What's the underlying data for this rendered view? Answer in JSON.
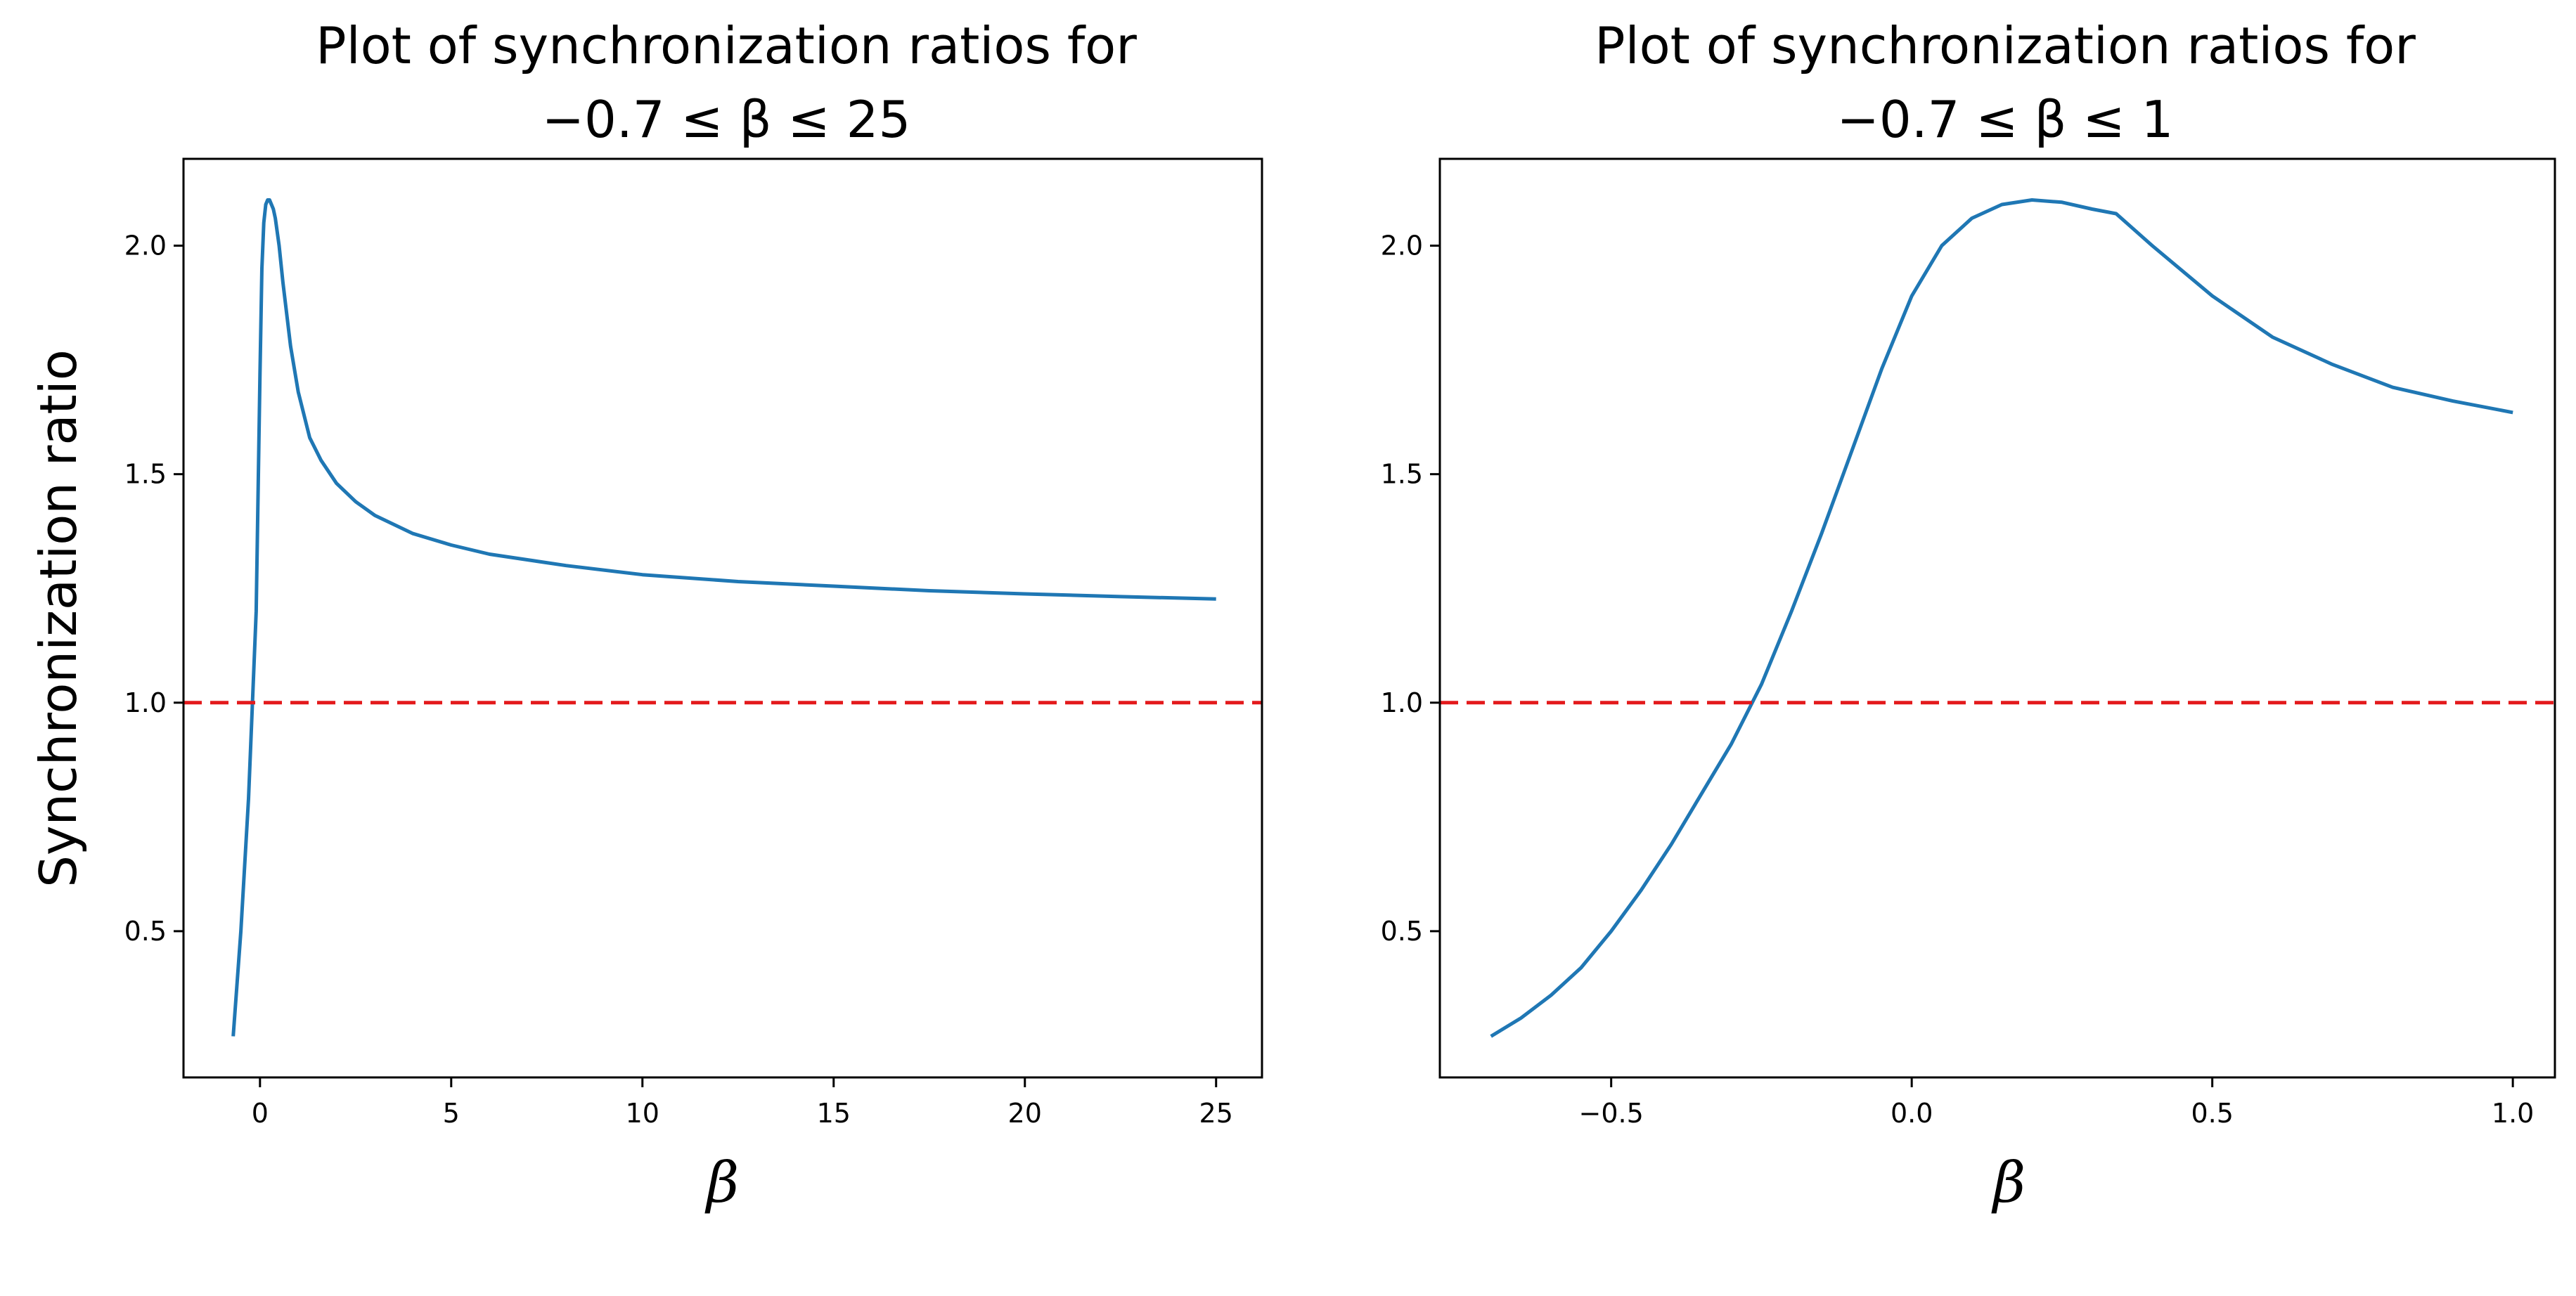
{
  "chart_data": [
    {
      "type": "line",
      "title_line1": "Plot of synchronization ratios for",
      "title_line2": "−0.7 ≤ β ≤ 25",
      "xlabel": "β",
      "ylabel": "Synchronization ratio",
      "xlim": [
        -2.0,
        26.2
      ],
      "ylim": [
        0.18,
        2.19
      ],
      "xticks": [
        0,
        5,
        10,
        15,
        20,
        25
      ],
      "xtick_labels": [
        "0",
        "5",
        "10",
        "15",
        "20",
        "25"
      ],
      "yticks": [
        0.5,
        1.0,
        1.5,
        2.0
      ],
      "ytick_labels": [
        "0.5",
        "1.0",
        "1.5",
        "2.0"
      ],
      "grid": false,
      "series": [
        {
          "color": "#1f77b4",
          "x": [
            -0.7,
            -0.5,
            -0.3,
            -0.1,
            0.0,
            0.05,
            0.1,
            0.15,
            0.2,
            0.25,
            0.3,
            0.35,
            0.4,
            0.5,
            0.6,
            0.8,
            1.0,
            1.3,
            1.6,
            2.0,
            2.5,
            3.0,
            4.0,
            5.0,
            6.0,
            8.0,
            10.0,
            12.5,
            15.0,
            17.5,
            20.0,
            22.5,
            25.0
          ],
          "y": [
            0.27,
            0.5,
            0.79,
            1.2,
            1.72,
            1.95,
            2.05,
            2.09,
            2.1,
            2.1,
            2.09,
            2.08,
            2.06,
            2.0,
            1.92,
            1.78,
            1.68,
            1.58,
            1.53,
            1.48,
            1.44,
            1.41,
            1.37,
            1.345,
            1.325,
            1.3,
            1.28,
            1.265,
            1.255,
            1.245,
            1.238,
            1.232,
            1.227
          ]
        },
        {
          "color": "#e31a1c",
          "style": "dashed",
          "x": [
            -2.0,
            26.2
          ],
          "y": [
            1.0,
            1.0
          ]
        }
      ]
    },
    {
      "type": "line",
      "title_line1": "Plot of synchronization ratios for",
      "title_line2": "−0.7 ≤ β ≤ 1",
      "xlabel": "β",
      "ylabel": "",
      "xlim": [
        -0.785,
        1.07
      ],
      "ylim": [
        0.18,
        2.19
      ],
      "xticks": [
        -0.5,
        0.0,
        0.5,
        1.0
      ],
      "xtick_labels": [
        "−0.5",
        "0.0",
        "0.5",
        "1.0"
      ],
      "yticks": [
        0.5,
        1.0,
        1.5,
        2.0
      ],
      "ytick_labels": [
        "0.5",
        "1.0",
        "1.5",
        "2.0"
      ],
      "grid": false,
      "series": [
        {
          "color": "#1f77b4",
          "x": [
            -0.7,
            -0.65,
            -0.6,
            -0.55,
            -0.5,
            -0.45,
            -0.4,
            -0.35,
            -0.3,
            -0.25,
            -0.2,
            -0.15,
            -0.1,
            -0.05,
            0.0,
            0.05,
            0.1,
            0.15,
            0.2,
            0.25,
            0.3,
            0.34,
            0.4,
            0.5,
            0.6,
            0.7,
            0.8,
            0.9,
            1.0
          ],
          "y": [
            0.27,
            0.31,
            0.36,
            0.42,
            0.5,
            0.59,
            0.69,
            0.8,
            0.91,
            1.04,
            1.2,
            1.37,
            1.55,
            1.73,
            1.89,
            2.0,
            2.06,
            2.09,
            2.1,
            2.095,
            2.08,
            2.07,
            2.0,
            1.89,
            1.8,
            1.74,
            1.69,
            1.66,
            1.635
          ]
        },
        {
          "color": "#e31a1c",
          "style": "dashed",
          "x": [
            -0.785,
            1.07
          ],
          "y": [
            1.0,
            1.0
          ]
        }
      ]
    }
  ]
}
